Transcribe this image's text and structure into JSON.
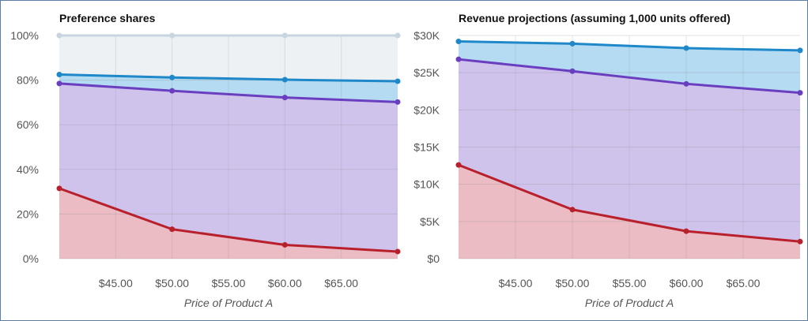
{
  "chart_data": [
    {
      "type": "area",
      "title": "Preference shares",
      "xlabel": "Price of Product A",
      "ylabel": "",
      "x": [
        40,
        50,
        60,
        70
      ],
      "xlim": [
        40,
        70
      ],
      "ylim": [
        0,
        100
      ],
      "x_ticks": [
        45,
        50,
        55,
        60,
        65
      ],
      "x_tick_labels": [
        "$45.00",
        "$50.00",
        "$55.00",
        "$60.00",
        "$65.00"
      ],
      "y_ticks": [
        0,
        20,
        40,
        60,
        80,
        100
      ],
      "y_tick_labels": [
        "0%",
        "20%",
        "40%",
        "60%",
        "80%",
        "100%"
      ],
      "grid": true,
      "series": [
        {
          "values": [
            100,
            100,
            100,
            100
          ],
          "color": "#c8d4de",
          "fill": "#eef1f4"
        },
        {
          "values": [
            82.5,
            81.2,
            80.2,
            79.5
          ],
          "color": "#1f88c9",
          "fill": "#b5dbf2"
        },
        {
          "values": [
            78.5,
            75.2,
            72.2,
            70.2
          ],
          "color": "#6a3fbf",
          "fill": "#cfc3ec"
        },
        {
          "values": [
            31.5,
            13.2,
            6.2,
            3.2
          ],
          "color": "#b8202c",
          "fill": "#ecbcc4"
        }
      ]
    },
    {
      "type": "area",
      "title": "Revenue projections (assuming 1,000 units offered)",
      "xlabel": "Price of Product A",
      "ylabel": "",
      "x": [
        40,
        50,
        60,
        70
      ],
      "xlim": [
        40,
        70
      ],
      "ylim": [
        0,
        30000
      ],
      "x_ticks": [
        45,
        50,
        55,
        60,
        65
      ],
      "x_tick_labels": [
        "$45.00",
        "$50.00",
        "$55.00",
        "$60.00",
        "$65.00"
      ],
      "y_ticks": [
        0,
        5000,
        10000,
        15000,
        20000,
        25000,
        30000
      ],
      "y_tick_labels": [
        "$0",
        "$5K",
        "$10K",
        "$15K",
        "$20K",
        "$25K",
        "$30K"
      ],
      "grid": true,
      "series": [
        {
          "values": [
            29200,
            28900,
            28300,
            28000
          ],
          "color": "#1f88c9",
          "fill": "#b5dbf2"
        },
        {
          "values": [
            26800,
            25200,
            23500,
            22300
          ],
          "color": "#6a3fbf",
          "fill": "#cfc3ec"
        },
        {
          "values": [
            12600,
            6600,
            3700,
            2300
          ],
          "color": "#b8202c",
          "fill": "#ecbcc4"
        }
      ]
    }
  ]
}
